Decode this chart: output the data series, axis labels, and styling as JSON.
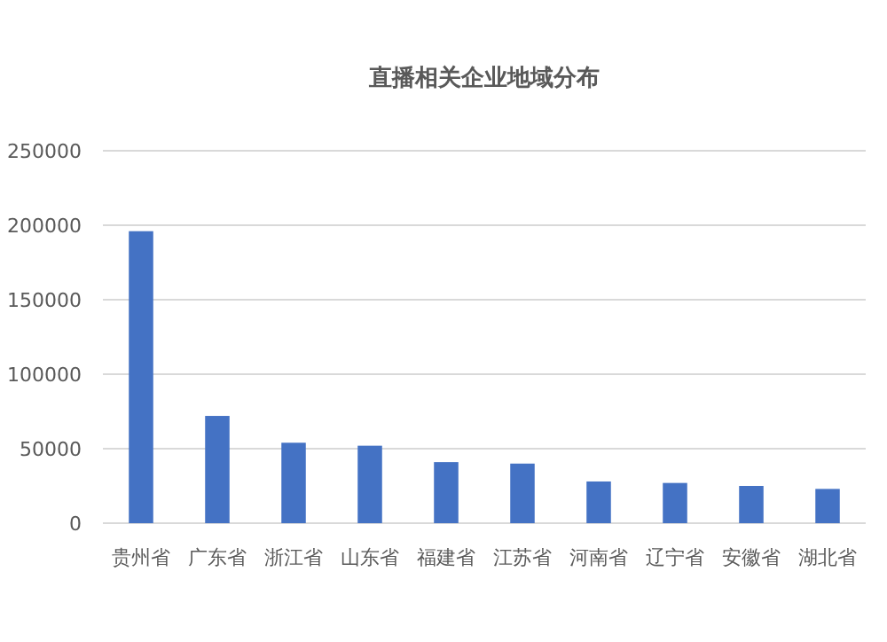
{
  "chart_data": {
    "type": "bar",
    "title": "直播相关企业地域分布",
    "categories": [
      "贵州省",
      "广东省",
      "浙江省",
      "山东省",
      "福建省",
      "江苏省",
      "河南省",
      "辽宁省",
      "安徽省",
      "湖北省"
    ],
    "values": [
      196000,
      72000,
      54000,
      52000,
      41000,
      40000,
      28000,
      27000,
      25000,
      23000
    ],
    "color": "#4472c4",
    "ylim": [
      0,
      250000
    ],
    "yticks": [
      0,
      50000,
      100000,
      150000,
      200000,
      250000
    ],
    "grid": "y"
  }
}
